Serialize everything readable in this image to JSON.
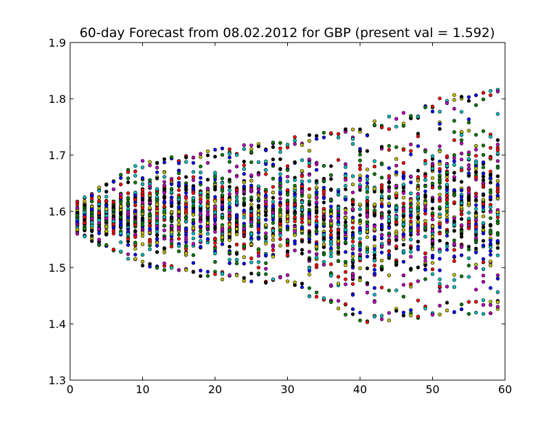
{
  "chart_data": {
    "type": "scatter",
    "title": "60-day Forecast from 08.02.2012 for GBP (present val = 1.592)",
    "xlabel": "",
    "ylabel": "",
    "xlim": [
      0,
      60
    ],
    "ylim": [
      1.3,
      1.9
    ],
    "x_ticks": [
      0,
      10,
      20,
      30,
      40,
      50,
      60
    ],
    "y_ticks": [
      1.3,
      1.4,
      1.5,
      1.6,
      1.7,
      1.8,
      1.9
    ],
    "grid": false,
    "legend": "none",
    "present_value": 1.592,
    "days": 59,
    "paths_per_day": 50,
    "series_colors": [
      "#0000ff",
      "#007f00",
      "#ff0000",
      "#00bfbf",
      "#bf00bf",
      "#bfbf00",
      "#000000"
    ],
    "envelope": {
      "day": [
        1,
        10,
        20,
        30,
        40,
        50,
        59
      ],
      "upper": [
        1.62,
        1.69,
        1.71,
        1.73,
        1.75,
        1.8,
        1.82
      ],
      "lower": [
        1.56,
        1.5,
        1.48,
        1.47,
        1.4,
        1.41,
        1.42
      ]
    }
  }
}
